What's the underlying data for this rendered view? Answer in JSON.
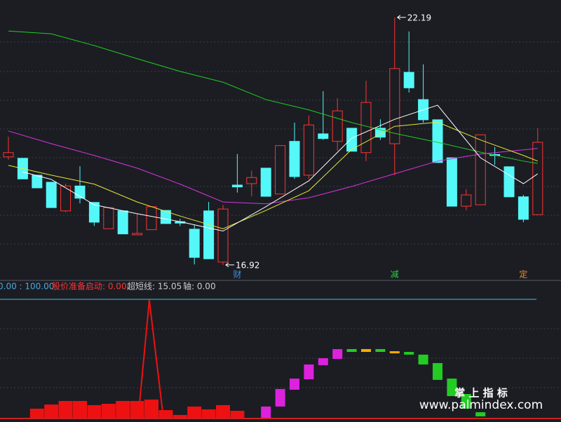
{
  "chart_data": [
    {
      "type": "candlestick",
      "ylim": [
        16.59,
        22.56
      ],
      "up_color": "#ff3333",
      "down_color": "#54f8f8",
      "open": [
        19.22,
        19.19,
        18.83,
        18.68,
        18.07,
        18.6,
        18.25,
        17.69,
        18.07,
        17.56,
        17.67,
        18.08,
        17.84,
        17.68,
        18.07,
        16.98,
        18.62,
        18.65,
        18.98,
        18.43,
        19.55,
        18.83,
        19.71,
        19.55,
        19.83,
        19.31,
        19.83,
        19.5,
        21.02,
        20.44,
        20.01,
        19.2,
        18.17,
        18.2,
        19.27,
        19.01,
        18.37,
        17.99
      ],
      "high": [
        19.65,
        19.19,
        18.83,
        18.68,
        18.65,
        19.02,
        18.25,
        18.14,
        18.07,
        18.01,
        18.16,
        18.08,
        17.9,
        17.78,
        18.26,
        18.2,
        19.28,
        18.93,
        18.98,
        19.46,
        19.95,
        20.1,
        20.62,
        20.47,
        19.83,
        20.84,
        20.02,
        22.19,
        21.89,
        21.19,
        20.01,
        19.2,
        18.53,
        19.69,
        19.43,
        19.01,
        18.41,
        19.83
      ],
      "low": [
        19.16,
        18.75,
        18.56,
        18.14,
        18.04,
        18.23,
        17.75,
        17.69,
        17.58,
        17.56,
        17.67,
        17.8,
        17.75,
        16.93,
        17.05,
        16.92,
        18.46,
        18.38,
        18.38,
        18.43,
        18.75,
        18.75,
        19.58,
        19.35,
        19.34,
        19.13,
        19.58,
        18.83,
        20.59,
        19.95,
        19.1,
        18.17,
        18.08,
        18.2,
        19.05,
        18.37,
        17.83,
        17.99
      ],
      "close": [
        19.31,
        18.75,
        18.56,
        18.14,
        18.6,
        18.34,
        17.83,
        18.14,
        17.58,
        17.59,
        18.16,
        17.8,
        17.81,
        17.08,
        17.05,
        18.11,
        18.58,
        18.78,
        18.38,
        19.46,
        18.8,
        19.9,
        19.61,
        20.2,
        19.34,
        20.38,
        19.64,
        21.1,
        20.69,
        20.01,
        19.1,
        18.17,
        18.41,
        19.69,
        19.25,
        18.37,
        17.89,
        19.53
      ],
      "series": [
        {
          "color": "#22cc22",
          "x": [
            0,
            3,
            6,
            9,
            12,
            15,
            18,
            21,
            24,
            27,
            30,
            33,
            36,
            37
          ],
          "values": [
            21.9,
            21.84,
            21.59,
            21.31,
            21.04,
            20.81,
            20.44,
            20.22,
            19.95,
            19.72,
            19.53,
            19.32,
            19.13,
            19.08
          ]
        },
        {
          "color": "#dd33dd",
          "x": [
            0,
            3,
            6,
            9,
            12,
            15,
            18,
            21,
            24,
            27,
            30,
            33,
            36,
            37
          ],
          "values": [
            19.77,
            19.5,
            19.25,
            18.98,
            18.64,
            18.26,
            18.22,
            18.35,
            18.59,
            18.86,
            19.13,
            19.28,
            19.37,
            19.4
          ]
        },
        {
          "color": "#e6e633",
          "x": [
            0,
            3,
            6,
            9,
            12,
            15,
            18,
            21,
            24,
            27,
            30,
            33,
            36,
            37
          ],
          "values": [
            19.04,
            18.83,
            18.64,
            18.26,
            17.96,
            17.69,
            18.08,
            18.5,
            19.38,
            19.87,
            19.96,
            19.58,
            19.25,
            19.13
          ]
        },
        {
          "color": "#ffffff",
          "x": [
            1,
            3,
            6,
            9,
            12,
            15,
            18,
            21,
            24,
            27,
            30,
            33,
            36,
            37
          ],
          "values": [
            18.9,
            18.74,
            18.2,
            18.01,
            17.84,
            17.64,
            18.16,
            18.71,
            19.62,
            20.02,
            20.32,
            19.2,
            18.65,
            18.86
          ]
        }
      ],
      "high_label": {
        "index": 27,
        "value": 22.19
      },
      "low_label": {
        "index": 15,
        "value": 16.92
      },
      "annotations": [
        {
          "index": 16,
          "text": "财",
          "color": "#3d8ee8"
        },
        {
          "index": 27,
          "text": "减",
          "color": "#2ecc40"
        },
        {
          "index": 36,
          "text": "定",
          "color": "#ff8c1a"
        }
      ]
    },
    {
      "type": "bar",
      "ylim": [
        0,
        100
      ],
      "header": [
        {
          "text": "0.00 : 100.00",
          "color": "#4aa8e0"
        },
        {
          "text": "股价准备启动: 0.00",
          "color": "#ff3333"
        },
        {
          "text": "超短线: 15.05",
          "color": "#cccccc"
        },
        {
          "text": "轴: 0.00",
          "color": "#cccccc"
        }
      ],
      "bars": {
        "color": "#ee1111",
        "x": [
          2,
          3,
          4,
          5,
          6,
          7,
          8,
          9,
          10,
          11,
          12,
          13,
          14,
          15,
          16
        ],
        "values": [
          7.7,
          11.2,
          14.2,
          14.2,
          10.7,
          11.8,
          14.2,
          14.2,
          15.4,
          6.5,
          2.4,
          9.5,
          7.1,
          10.7,
          5.9
        ]
      },
      "spike": {
        "color": "#ee1111",
        "x": [
          9.07,
          9.85,
          10.83
        ],
        "values": [
          0,
          99.4,
          0
        ]
      },
      "blocks": {
        "x": [
          18,
          19,
          20,
          21,
          22,
          23,
          24,
          25,
          26,
          27,
          28,
          29,
          30,
          31,
          32,
          33
        ],
        "low": [
          0,
          9.5,
          23.7,
          32.5,
          44.4,
          49.7,
          55.6,
          55.6,
          55.6,
          54.4,
          53.3,
          45.0,
          32.0,
          18.3,
          7.7,
          1.2
        ],
        "values": [
          9.5,
          24.3,
          33.1,
          45.0,
          50.3,
          58.0,
          58.0,
          58.0,
          58.0,
          56.2,
          55.6,
          53.3,
          46.2,
          33.1,
          20.1,
          4.7
        ],
        "colors": [
          "#dd22dd",
          "#dd22dd",
          "#dd22dd",
          "#dd22dd",
          "#dd22dd",
          "#dd22dd",
          "#22cc22",
          "#ffaa00",
          "#22cc22",
          "#ffaa00",
          "#22cc22",
          "#22cc22",
          "#22cc22",
          "#22cc22",
          "#22cc22",
          "#22cc22"
        ]
      }
    }
  ],
  "watermark": {
    "title": "掌 上 指 标",
    "url": "www.palmindex.com"
  }
}
